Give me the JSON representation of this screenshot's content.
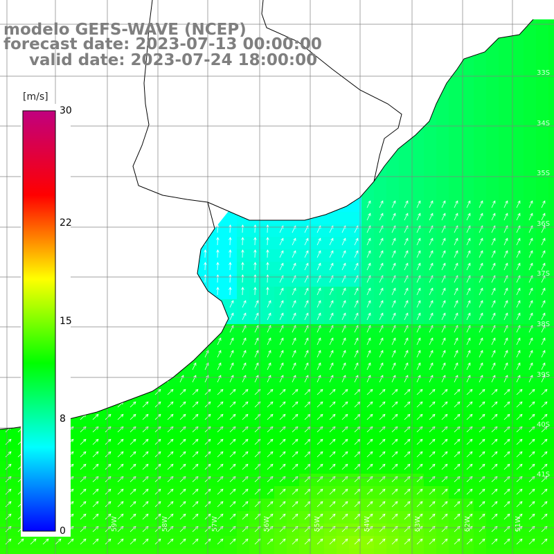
{
  "title": {
    "line1": "modelo GEFS-WAVE (NCEP)",
    "line2": "forecast date: 2023-07-13 00:00:00",
    "line3": "valid date: 2023-07-24 18:00:00"
  },
  "colorbar": {
    "unit": "[m/s]",
    "ticks": [
      "30",
      "22",
      "15",
      "8",
      "0"
    ],
    "min": 0,
    "max": 30,
    "stops": [
      "#0000ff",
      "#00ffff",
      "#00ff00",
      "#ffff00",
      "#ff0000",
      "#c0007f"
    ]
  },
  "lat_labels": [
    "33S",
    "34S",
    "35S",
    "36S",
    "37S",
    "38S",
    "39S",
    "40S",
    "41S"
  ],
  "lon_labels": [
    "59W",
    "58W",
    "57W",
    "56W",
    "55W",
    "54W",
    "53W",
    "52W",
    "51W"
  ],
  "colors": {
    "land": "#ffffff",
    "coast": "#000000",
    "grid": "#808080",
    "arrow": "#ffffff"
  },
  "wind_field": {
    "description_levels_mps": {
      "river_estuary": 6,
      "near_coast": 8.5,
      "offshore_north": 11,
      "offshore_south": 13,
      "southern_max": 15.5
    }
  }
}
